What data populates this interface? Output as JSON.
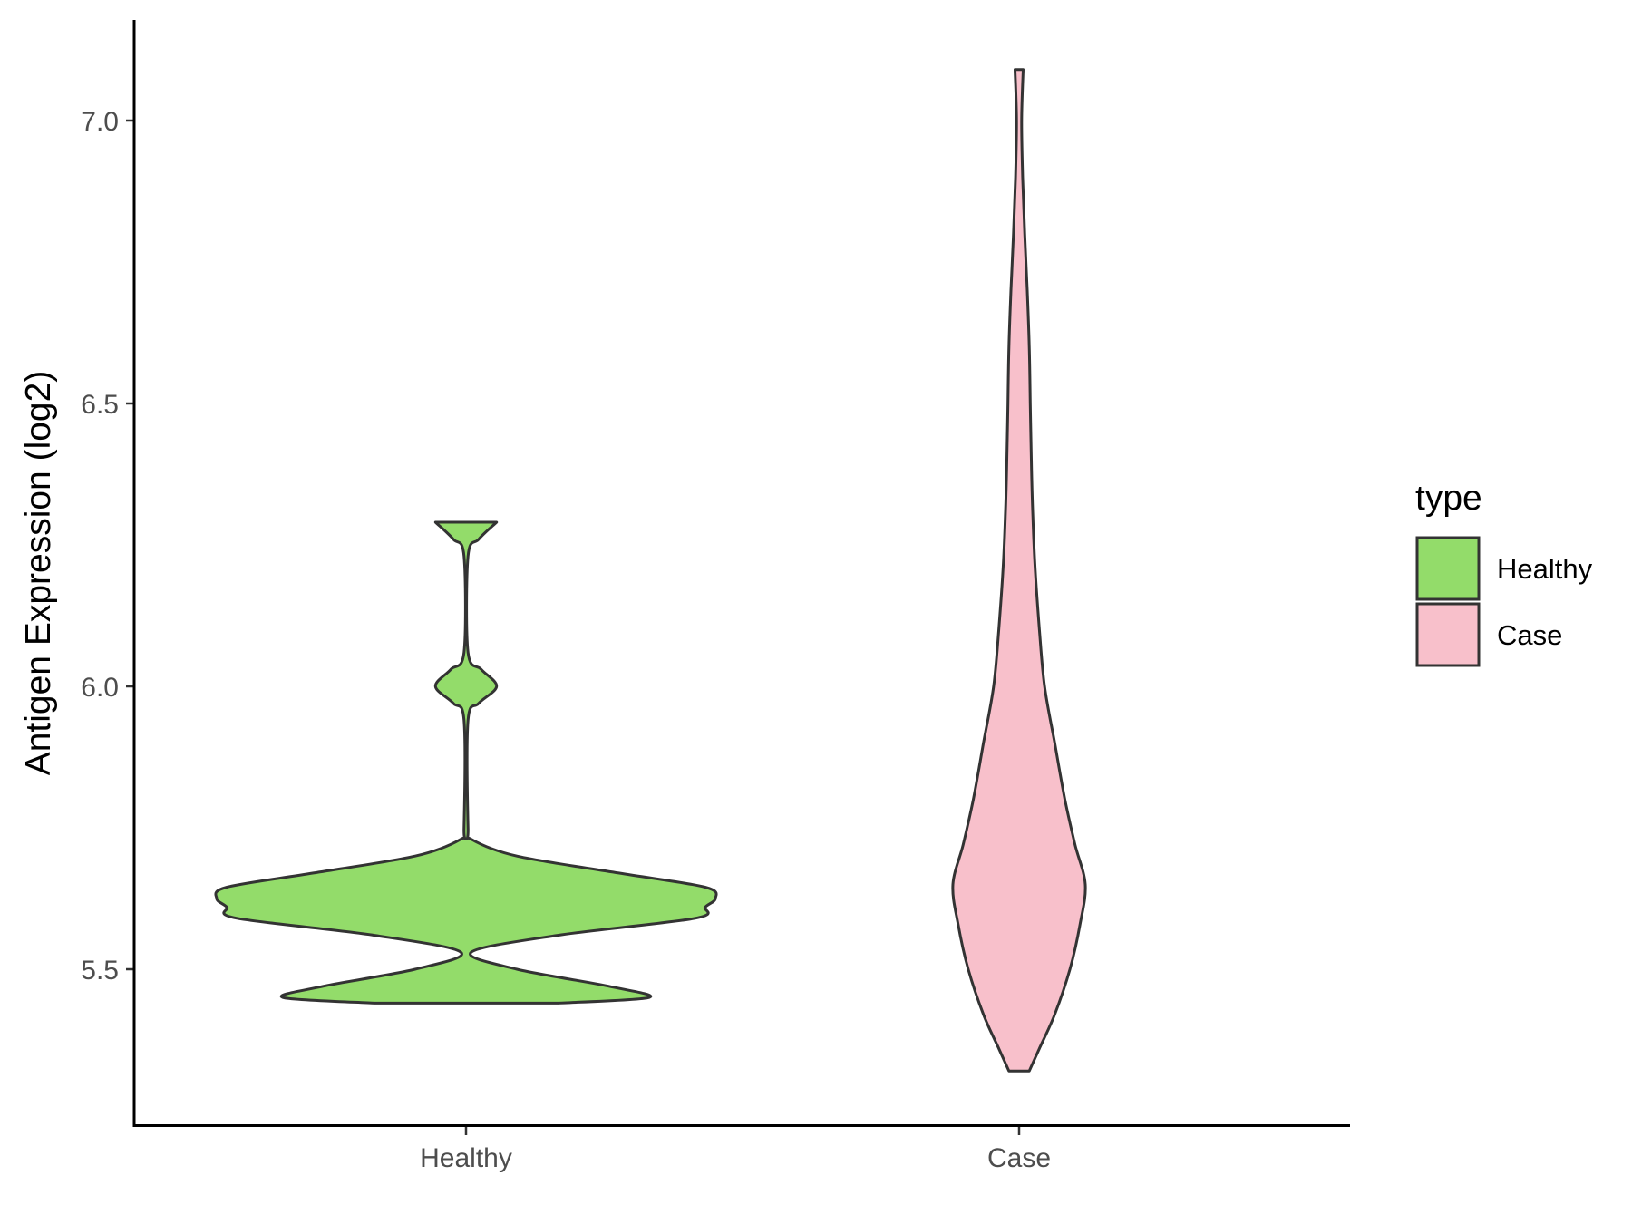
{
  "chart_data": {
    "type": "violin",
    "title": "",
    "xlabel": "",
    "ylabel": "Antigen Expression (log2)",
    "ylim": [
      5.3,
      7.2
    ],
    "yticks": [
      "5.5",
      "6.0",
      "6.5",
      "7.0"
    ],
    "categories": [
      "Healthy",
      "Case"
    ],
    "grid": false,
    "legend": {
      "title": "type",
      "position": "right",
      "entries": [
        "Healthy",
        "Case"
      ]
    },
    "colors": {
      "Healthy": "#93dc6a",
      "Case": "#f8c0cb",
      "outline": "#333333"
    },
    "series": [
      {
        "name": "Healthy",
        "density": [
          [
            5.44,
            0.18
          ],
          [
            5.45,
            0.36
          ],
          [
            5.47,
            0.28
          ],
          [
            5.5,
            0.1
          ],
          [
            5.53,
            0.01
          ],
          [
            5.56,
            0.18
          ],
          [
            5.59,
            0.45
          ],
          [
            5.61,
            0.47
          ],
          [
            5.625,
            0.49
          ],
          [
            5.645,
            0.47
          ],
          [
            5.67,
            0.3
          ],
          [
            5.7,
            0.1
          ],
          [
            5.73,
            0.01
          ],
          [
            5.75,
            0.004
          ],
          [
            5.94,
            0.004
          ],
          [
            5.97,
            0.025
          ],
          [
            6.0,
            0.06
          ],
          [
            6.03,
            0.03
          ],
          [
            6.06,
            0.004
          ],
          [
            6.23,
            0.004
          ],
          [
            6.26,
            0.025
          ],
          [
            6.29,
            0.06
          ]
        ]
      },
      {
        "name": "Case",
        "density": [
          [
            5.32,
            0.02
          ],
          [
            5.36,
            0.04
          ],
          [
            5.42,
            0.07
          ],
          [
            5.5,
            0.1
          ],
          [
            5.58,
            0.12
          ],
          [
            5.65,
            0.13
          ],
          [
            5.72,
            0.11
          ],
          [
            5.8,
            0.09
          ],
          [
            5.9,
            0.07
          ],
          [
            6.0,
            0.05
          ],
          [
            6.1,
            0.04
          ],
          [
            6.2,
            0.032
          ],
          [
            6.3,
            0.027
          ],
          [
            6.4,
            0.024
          ],
          [
            6.5,
            0.022
          ],
          [
            6.6,
            0.02
          ],
          [
            6.7,
            0.016
          ],
          [
            6.8,
            0.011
          ],
          [
            6.9,
            0.007
          ],
          [
            7.0,
            0.005
          ],
          [
            7.09,
            0.008
          ]
        ]
      }
    ]
  }
}
